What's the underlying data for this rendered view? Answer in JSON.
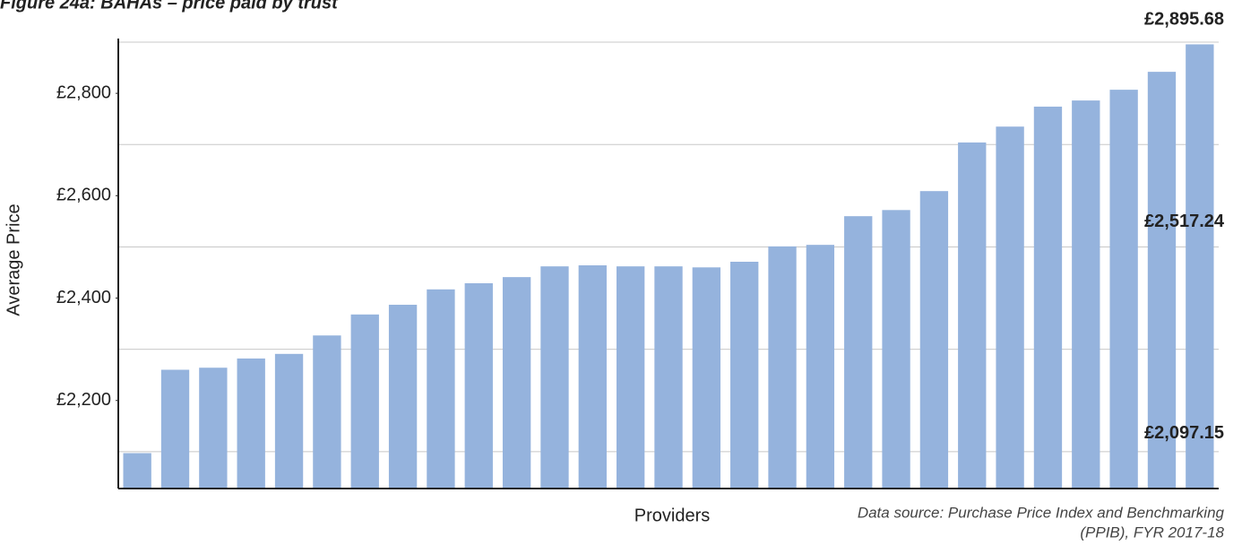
{
  "chart_data": {
    "type": "bar",
    "title": "Figure 24a: BAHAs  – price paid by trust",
    "y_label": "Average Price",
    "x_label": "Providers",
    "source": [
      "Data source: Purchase Price Index and Benchmarking",
      "(PPIB), FYR 2017-18"
    ],
    "categories": [
      null,
      null,
      null,
      null,
      null,
      null,
      null,
      null,
      null,
      null,
      null,
      null,
      null,
      null,
      null,
      null,
      null,
      null,
      null,
      null,
      null,
      null,
      null,
      null,
      null,
      null,
      null,
      null,
      null
    ],
    "values": [
      2097.15,
      2260,
      2264,
      2282,
      2291,
      2327,
      2368,
      2387,
      2417,
      2429,
      2441,
      2462,
      2464,
      2462,
      2462,
      2460,
      2471,
      2501,
      2504,
      2560,
      2572,
      2609,
      2704,
      2735,
      2774,
      2786,
      2807,
      2842,
      2895.68
    ],
    "color": "#95b3dd",
    "ylim": [
      2028,
      2900
    ],
    "yticks": [
      {
        "value": 2200,
        "label": "£2,200"
      },
      {
        "value": 2400,
        "label": "£2,400"
      },
      {
        "value": 2600,
        "label": "£2,600"
      },
      {
        "value": 2800,
        "label": "£2,800"
      }
    ],
    "gridlines": [
      2100,
      2300,
      2500,
      2700,
      2900
    ],
    "grid": true,
    "annotations": [
      {
        "text": "£2,895.68",
        "value": 2895.68
      },
      {
        "text": "£2,517.24",
        "value": 2517.24
      },
      {
        "text": "£2,097.15",
        "value": 2097.15
      }
    ]
  }
}
